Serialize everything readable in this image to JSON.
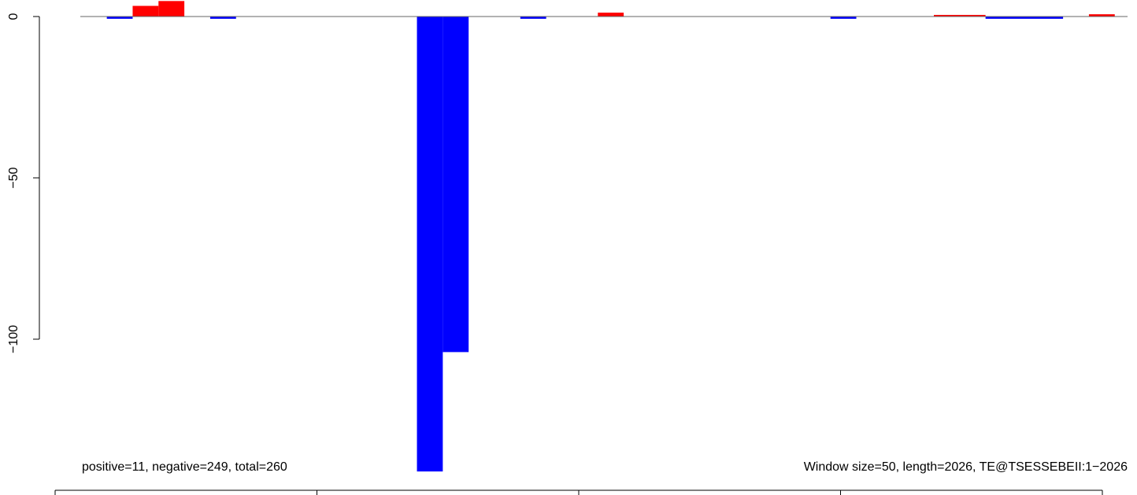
{
  "chart_data": {
    "type": "bar",
    "title": "",
    "xlabel": "",
    "ylabel": "",
    "x_range": [
      0,
      2026
    ],
    "ylim": [
      -141,
      4.8
    ],
    "y_ticks": [
      0,
      -50,
      -100
    ],
    "y_tick_labels": [
      "0",
      "−50",
      "−100"
    ],
    "window_size": 50,
    "bars": [
      {
        "start": 100,
        "end": 150,
        "value": -0.7,
        "series": "negative"
      },
      {
        "start": 150,
        "end": 200,
        "value": 3.3,
        "series": "positive"
      },
      {
        "start": 200,
        "end": 250,
        "value": 4.8,
        "series": "positive"
      },
      {
        "start": 300,
        "end": 350,
        "value": -0.7,
        "series": "negative"
      },
      {
        "start": 700,
        "end": 750,
        "value": -141,
        "series": "negative"
      },
      {
        "start": 750,
        "end": 800,
        "value": -104,
        "series": "negative"
      },
      {
        "start": 900,
        "end": 950,
        "value": -0.7,
        "series": "negative"
      },
      {
        "start": 1050,
        "end": 1100,
        "value": 1.2,
        "series": "positive"
      },
      {
        "start": 1500,
        "end": 1550,
        "value": -0.7,
        "series": "negative"
      },
      {
        "start": 1700,
        "end": 1800,
        "value": 0.5,
        "series": "positive"
      },
      {
        "start": 1800,
        "end": 1950,
        "value": -0.7,
        "series": "negative"
      },
      {
        "start": 2000,
        "end": 2050,
        "value": 0.7,
        "series": "positive"
      }
    ],
    "colors": {
      "positive": "#ff0000",
      "negative": "#0000ff",
      "baseline": "#666666",
      "axis": "#000000"
    },
    "grid": false,
    "annotations": {
      "left": "positive=11, negative=249, total=260",
      "right": "Window size=50, length=2026, TE@TSESSEBEII:1−2026"
    }
  }
}
